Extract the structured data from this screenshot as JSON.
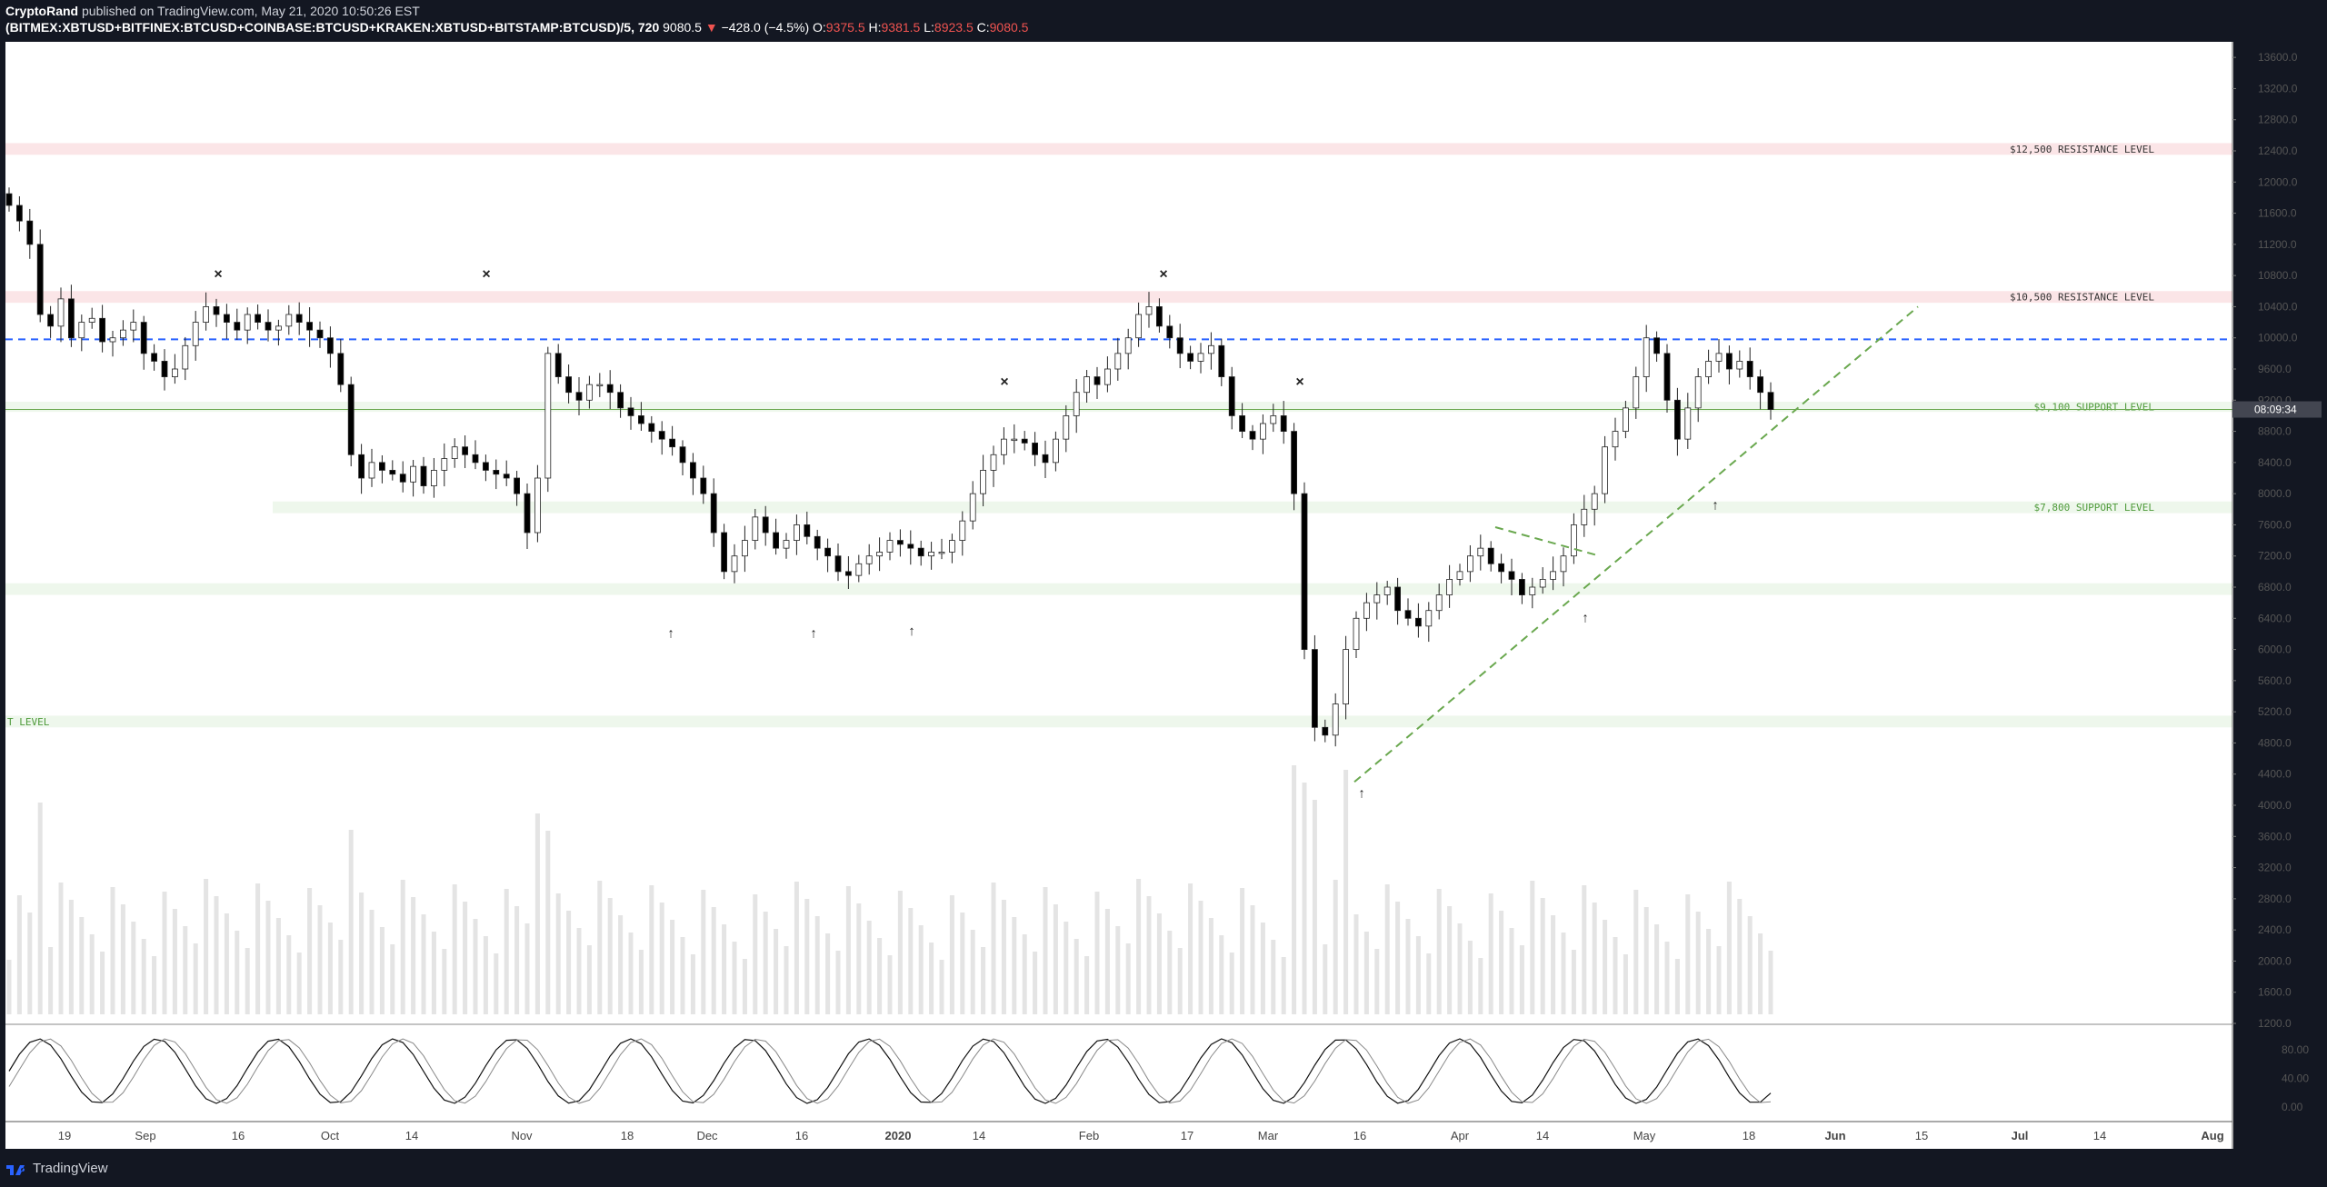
{
  "header": {
    "author": "CryptoRand",
    "published": " published on TradingView.com, May 21, 2020 10:50:26 EST",
    "symbol": "(BITMEX:XBTUSD+BITFINEX:BTCUSD+COINBASE:BTCUSD+KRAKEN:XBTUSD+BITSTAMP:BTCUSD)/5, 720",
    "last": "9080.5",
    "change_arrow": "▼",
    "change": "−428.0 (−4.5%)",
    "o_label": "O:",
    "o_value": "9375.5",
    "h_label": "H:",
    "h_value": "9381.5",
    "l_label": "L:",
    "l_value": "8923.5",
    "c_label": "C:",
    "c_value": "9080.5"
  },
  "footer": {
    "brand": "TradingView"
  },
  "colors": {
    "up": "#ffffff",
    "down": "#000000",
    "resistance_zone": "#fbe5e7",
    "support_zone": "#eef7ec",
    "blue_line": "#2962ff",
    "green_trend": "#6aa84f",
    "price_tag_bg": "#434651",
    "volume": "#d9d9d9"
  },
  "chart_data": {
    "type": "candlestick",
    "price_axis": {
      "ylim": [
        1200,
        13800
      ],
      "ticks": [
        "13600.0",
        "13200.0",
        "12800.0",
        "12400.0",
        "12000.0",
        "11600.0",
        "11200.0",
        "10800.0",
        "10400.0",
        "10000.0",
        "9600.0",
        "9200.0",
        "8800.0",
        "8400.0",
        "8000.0",
        "7600.0",
        "7200.0",
        "6800.0",
        "6400.0",
        "6000.0",
        "5600.0",
        "5200.0",
        "4800.0",
        "4400.0",
        "4000.0",
        "3600.0",
        "3200.0",
        "2800.0",
        "2400.0",
        "2000.0",
        "1600.0",
        "1200.0"
      ]
    },
    "time_axis": {
      "ticks": [
        "19",
        "Sep",
        "16",
        "Oct",
        "14",
        "Nov",
        "18",
        "Dec",
        "16",
        "2020",
        "14",
        "Feb",
        "17",
        "Mar",
        "16",
        "Apr",
        "14",
        "May",
        "18",
        "Jun",
        "15",
        "Jul",
        "14",
        "Aug"
      ]
    },
    "current_price_tag": "08:09:34",
    "oscillator": {
      "ticks": [
        "80.00",
        "40.00",
        "0.00"
      ],
      "ylim": [
        0,
        100
      ]
    },
    "zones": [
      {
        "label": "$12,500 RESISTANCE LEVEL",
        "kind": "resistance",
        "from": 12350,
        "to": 12500
      },
      {
        "label": "$10,500 RESISTANCE LEVEL",
        "kind": "resistance",
        "from": 10450,
        "to": 10600
      },
      {
        "label": "$9,100 SUPPORT LEVEL",
        "kind": "support",
        "from": 9050,
        "to": 9180
      },
      {
        "label": "$7,800 SUPPORT LEVEL",
        "kind": "support",
        "from": 7750,
        "to": 7900
      },
      {
        "label": "",
        "kind": "support",
        "from": 6700,
        "to": 6850
      },
      {
        "label": "T LEVEL",
        "kind": "support",
        "from": 5000,
        "to": 5150
      }
    ],
    "dashed_level": 9980,
    "closes": [
      11700,
      11500,
      11200,
      10300,
      10150,
      10500,
      10000,
      10200,
      10250,
      9950,
      10000,
      10100,
      10200,
      9800,
      9700,
      9500,
      9600,
      9900,
      10200,
      10400,
      10300,
      10200,
      10100,
      10300,
      10200,
      10100,
      10150,
      10300,
      10200,
      10100,
      10000,
      9800,
      9400,
      8500,
      8200,
      8400,
      8300,
      8250,
      8150,
      8350,
      8100,
      8300,
      8450,
      8600,
      8500,
      8400,
      8300,
      8250,
      8200,
      8000,
      7500,
      8200,
      9800,
      9500,
      9300,
      9200,
      9400,
      9400,
      9300,
      9100,
      9000,
      8900,
      8800,
      8700,
      8600,
      8400,
      8200,
      8000,
      7500,
      7000,
      7200,
      7400,
      7700,
      7500,
      7300,
      7400,
      7600,
      7450,
      7300,
      7200,
      7000,
      6950,
      7100,
      7200,
      7250,
      7400,
      7350,
      7300,
      7200,
      7250,
      7250,
      7400,
      7650,
      8000,
      8300,
      8500,
      8700,
      8700,
      8650,
      8500,
      8400,
      8700,
      9000,
      9300,
      9500,
      9400,
      9600,
      9800,
      10000,
      10300,
      10400,
      10150,
      10000,
      9800,
      9700,
      9800,
      9900,
      9500,
      9000,
      8800,
      8700,
      8900,
      9000,
      8800,
      8000,
      6000,
      5000,
      4900,
      5300,
      6000,
      6400,
      6600,
      6700,
      6800,
      6500,
      6400,
      6300,
      6500,
      6700,
      6900,
      7000,
      7200,
      7300,
      7100,
      7000,
      6900,
      6700,
      6800,
      6900,
      7000,
      7200,
      7600,
      7800,
      8000,
      8600,
      8800,
      9100,
      9500,
      10000,
      9800,
      9200,
      8700,
      9100,
      9500,
      9700,
      9800,
      9600,
      9700,
      9500,
      9300,
      9080
    ]
  }
}
